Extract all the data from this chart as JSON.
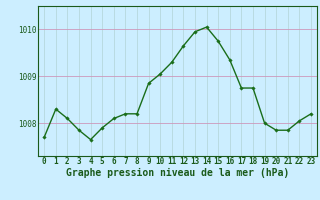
{
  "x": [
    0,
    1,
    2,
    3,
    4,
    5,
    6,
    7,
    8,
    9,
    10,
    11,
    12,
    13,
    14,
    15,
    16,
    17,
    18,
    19,
    20,
    21,
    22,
    23
  ],
  "y": [
    1007.7,
    1008.3,
    1008.1,
    1007.85,
    1007.65,
    1007.9,
    1008.1,
    1008.2,
    1008.2,
    1008.85,
    1009.05,
    1009.3,
    1009.65,
    1009.95,
    1010.05,
    1009.75,
    1009.35,
    1008.75,
    1008.75,
    1008.0,
    1007.85,
    1007.85,
    1008.05,
    1008.2
  ],
  "line_color": "#1a6e1a",
  "marker": "D",
  "marker_size": 1.8,
  "line_width": 1.0,
  "bg_color": "#cceeff",
  "grid_color_h": "#cc99bb",
  "grid_color_v": "#aacccc",
  "ylabel_ticks": [
    1008,
    1009,
    1010
  ],
  "ytick_labels": [
    "1008",
    "1009",
    "1010"
  ],
  "xlabel": "Graphe pression niveau de la mer (hPa)",
  "xlabel_fontsize": 7,
  "axis_color": "#1a5a1a",
  "tick_fontsize": 5.5,
  "ylim": [
    1007.3,
    1010.5
  ],
  "xlim": [
    -0.5,
    23.5
  ]
}
